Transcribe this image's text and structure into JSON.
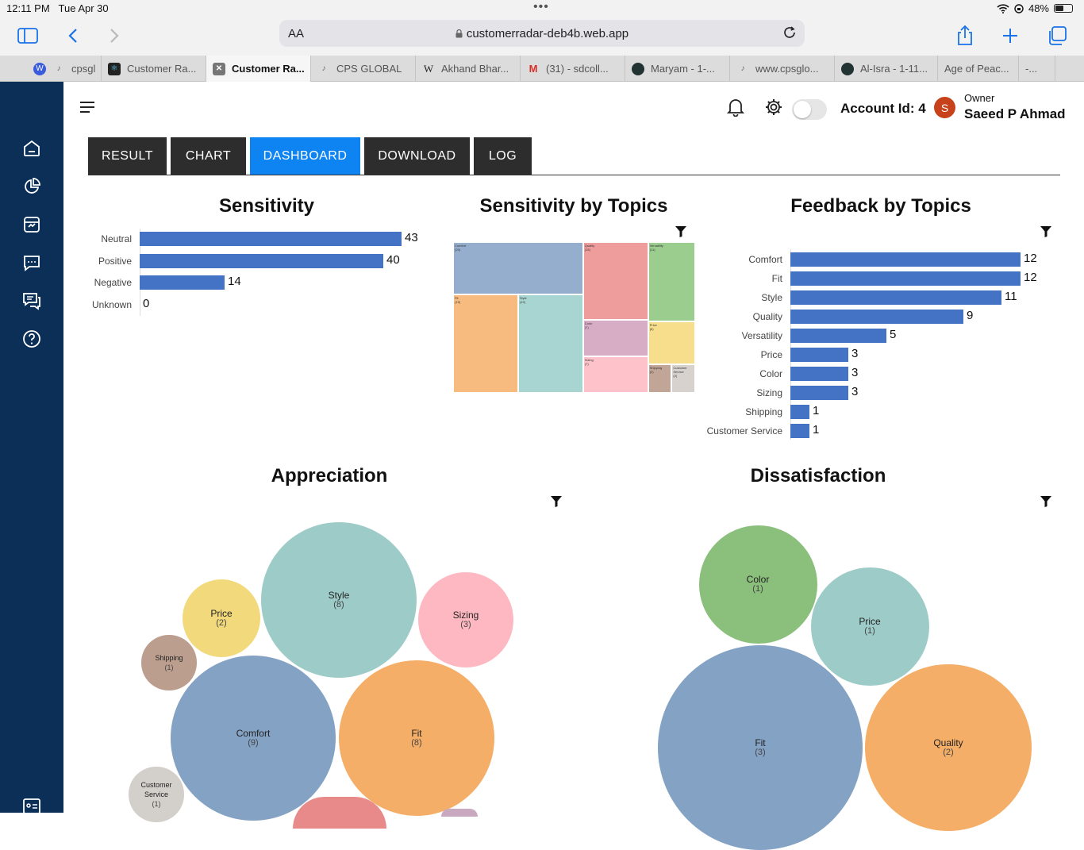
{
  "status_bar": {
    "time": "12:11 PM",
    "date": "Tue Apr 30",
    "battery": "48%",
    "battery_level": 0.48
  },
  "browser": {
    "text_size_label": "AA",
    "url": "customerradar-deb4b.web.app",
    "tabs": [
      {
        "label": "cpsgl",
        "active": false
      },
      {
        "label": "Customer Ra...",
        "active": false
      },
      {
        "label": "Customer Ra...",
        "active": true
      },
      {
        "label": "CPS GLOBAL",
        "active": false
      },
      {
        "label": "Akhand Bhar...",
        "active": false
      },
      {
        "label": "(31) - sdcoll...",
        "active": false
      },
      {
        "label": "Maryam - 1-...",
        "active": false
      },
      {
        "label": "www.cpsglo...",
        "active": false
      },
      {
        "label": "Al-Isra - 1-11...",
        "active": false
      },
      {
        "label": "Age of Peac...",
        "active": false
      },
      {
        "label": "-...",
        "active": false
      }
    ]
  },
  "header": {
    "account_id": "Account Id: 4",
    "avatar_initial": "S",
    "owner_role": "Owner",
    "owner_name": "Saeed P Ahmad"
  },
  "nav_tabs": [
    {
      "label": "RESULT",
      "active": false
    },
    {
      "label": "CHART",
      "active": false
    },
    {
      "label": "DASHBOARD",
      "active": true
    },
    {
      "label": "DOWNLOAD",
      "active": false
    },
    {
      "label": "LOG",
      "active": false
    }
  ],
  "colors": {
    "sidebar": "#0b2f57",
    "bar": "#4472c4",
    "active_tab": "#0d84f2"
  },
  "chart_data": [
    {
      "type": "bar",
      "orientation": "horizontal",
      "title": "Sensitivity",
      "categories": [
        "Neutral",
        "Positive",
        "Negative",
        "Unknown"
      ],
      "values": [
        43,
        40,
        14,
        0
      ]
    },
    {
      "type": "treemap",
      "title": "Sensitivity by Topics",
      "categories": [
        "Comfort",
        "Fit",
        "Style",
        "Quality",
        "Versatility",
        "Color",
        "Price",
        "Sizing",
        "Shipping",
        "Customer Service"
      ],
      "values": [
        20,
        19,
        19,
        15,
        11,
        7,
        6,
        7,
        2,
        2
      ]
    },
    {
      "type": "bar",
      "orientation": "horizontal",
      "title": "Feedback by Topics",
      "categories": [
        "Comfort",
        "Fit",
        "Style",
        "Quality",
        "Versatility",
        "Price",
        "Color",
        "Sizing",
        "Shipping",
        "Customer Service"
      ],
      "values": [
        12,
        12,
        11,
        9,
        5,
        3,
        3,
        3,
        1,
        1
      ]
    },
    {
      "type": "bubble",
      "title": "Appreciation",
      "categories": [
        "Comfort",
        "Style",
        "Fit",
        "Sizing",
        "Price",
        "Shipping",
        "Customer Service"
      ],
      "values": [
        9,
        8,
        8,
        3,
        2,
        1,
        1
      ]
    },
    {
      "type": "bubble",
      "title": "Dissatisfaction",
      "categories": [
        "Fit",
        "Quality",
        "Color",
        "Price"
      ],
      "values": [
        3,
        2,
        1,
        1
      ]
    }
  ]
}
